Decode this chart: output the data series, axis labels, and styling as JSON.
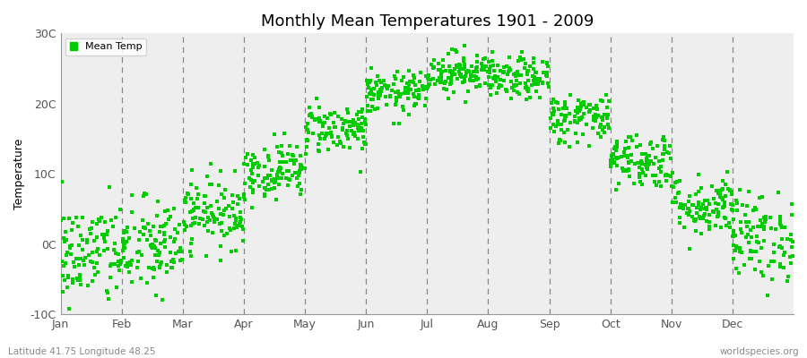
{
  "title": "Monthly Mean Temperatures 1901 - 2009",
  "ylabel": "Temperature",
  "footer_left": "Latitude 41.75 Longitude 48.25",
  "footer_right": "worldspecies.org",
  "legend_label": "Mean Temp",
  "dot_color": "#00CC00",
  "background_color": "#FFFFFF",
  "plot_bg_color": "#EEEEEE",
  "ylim": [
    -10,
    30
  ],
  "ytick_labels": [
    "-10C",
    "0C",
    "10C",
    "20C",
    "30C"
  ],
  "ytick_values": [
    -10,
    0,
    10,
    20,
    30
  ],
  "month_names": [
    "Jan",
    "Feb",
    "Mar",
    "Apr",
    "May",
    "Jun",
    "Jul",
    "Aug",
    "Sep",
    "Oct",
    "Nov",
    "Dec"
  ],
  "monthly_means": [
    -1.5,
    -0.5,
    4.5,
    10.5,
    16.5,
    21.5,
    24.5,
    23.5,
    18.0,
    12.0,
    5.5,
    1.0
  ],
  "monthly_stds": [
    3.8,
    3.5,
    2.5,
    2.0,
    1.8,
    1.5,
    1.5,
    1.5,
    1.8,
    2.0,
    2.2,
    3.2
  ],
  "n_years": 109,
  "seed": 42
}
